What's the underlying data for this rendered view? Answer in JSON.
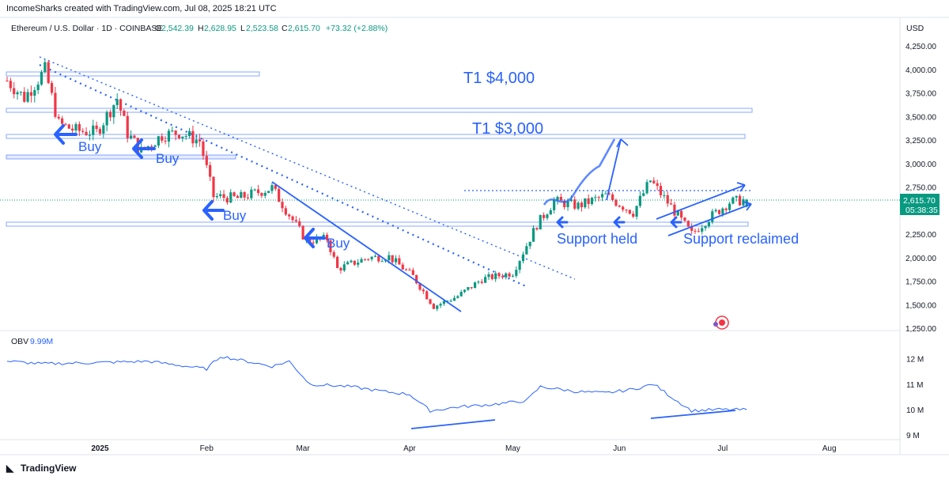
{
  "header": {
    "credit": "IncomeSharks created with TradingView.com, Jul 08, 2025 18:21 UTC"
  },
  "legend": {
    "symbol": "Ethereum / U.S. Dollar · 1D · COINBASE",
    "o_label": "O",
    "o": "2,542.39",
    "h_label": "H",
    "h": "2,628.95",
    "l_label": "L",
    "l": "2,523.58",
    "c_label": "C",
    "c": "2,615.70",
    "change": "+73.32 (+2.88%)"
  },
  "price_axis": {
    "currency": "USD",
    "ticks": [
      "4,250.00",
      "4,000.00",
      "3,750.00",
      "3,500.00",
      "3,250.00",
      "3,000.00",
      "2,750.00",
      "2,500.00",
      "2,250.00",
      "2,000.00",
      "1,750.00",
      "1,500.00",
      "1,250.00"
    ],
    "last_price": "2,615.70",
    "countdown": "05:38:35"
  },
  "obv": {
    "label": "OBV",
    "value": "9.99M",
    "ticks": [
      "12 M",
      "11 M",
      "10 M",
      "9 M"
    ]
  },
  "time_axis": {
    "ticks": [
      "2025",
      "Feb",
      "Mar",
      "Apr",
      "May",
      "Jun",
      "Jul",
      "Aug"
    ]
  },
  "annotations": {
    "target_high": "T1 $4,000",
    "target_mid": "T1 $3,000",
    "buy_labels": [
      "Buy",
      "Buy",
      "Buy",
      "Buy"
    ],
    "support_held": "Support held",
    "support_reclaimed": "Support reclaimed"
  },
  "footer": {
    "brand": "TradingView"
  },
  "colors": {
    "up": "#089981",
    "down": "#f23645",
    "annotation": "#2962ff",
    "obv_line": "#2962ff",
    "price_tag": "#089981"
  },
  "chart_data": [
    {
      "type": "candlestick",
      "title": "Ethereum / U.S. Dollar · 1D · COINBASE",
      "ylabel": "USD",
      "ylim": [
        1250,
        4250
      ],
      "x_ticks": [
        "2025",
        "Feb",
        "Mar",
        "Apr",
        "May",
        "Jun",
        "Jul",
        "Aug"
      ],
      "close_path": [
        [
          "2024-12-05",
          3880
        ],
        [
          "2024-12-10",
          3700
        ],
        [
          "2024-12-16",
          3990
        ],
        [
          "2024-12-20",
          3420
        ],
        [
          "2024-12-25",
          3350
        ],
        [
          "2024-12-31",
          3330
        ],
        [
          "2025-01-06",
          3690
        ],
        [
          "2025-01-09",
          3320
        ],
        [
          "2025-01-13",
          3130
        ],
        [
          "2025-01-19",
          3300
        ],
        [
          "2025-01-24",
          3330
        ],
        [
          "2025-01-30",
          3240
        ],
        [
          "2025-02-03",
          2650
        ],
        [
          "2025-02-10",
          2630
        ],
        [
          "2025-02-20",
          2740
        ],
        [
          "2025-02-24",
          2510
        ],
        [
          "2025-03-02",
          2180
        ],
        [
          "2025-03-08",
          2200
        ],
        [
          "2025-03-11",
          1880
        ],
        [
          "2025-03-20",
          2000
        ],
        [
          "2025-03-26",
          2010
        ],
        [
          "2025-04-02",
          1800
        ],
        [
          "2025-04-08",
          1480
        ],
        [
          "2025-04-15",
          1590
        ],
        [
          "2025-04-22",
          1770
        ],
        [
          "2025-05-01",
          1840
        ],
        [
          "2025-05-08",
          2350
        ],
        [
          "2025-05-13",
          2600
        ],
        [
          "2025-05-20",
          2550
        ],
        [
          "2025-05-28",
          2660
        ],
        [
          "2025-06-05",
          2480
        ],
        [
          "2025-06-10",
          2820
        ],
        [
          "2025-06-16",
          2540
        ],
        [
          "2025-06-22",
          2250
        ],
        [
          "2025-06-27",
          2420
        ],
        [
          "2025-07-03",
          2590
        ],
        [
          "2025-07-08",
          2615.7
        ]
      ],
      "last": {
        "open": 2542.39,
        "high": 2628.95,
        "low": 2523.58,
        "close": 2615.7,
        "change": 73.32,
        "change_pct": 2.88
      }
    },
    {
      "type": "line",
      "title": "OBV",
      "ylim": [
        9,
        12.3
      ],
      "units": "M",
      "series": [
        {
          "name": "OBV",
          "values": [
            [
              "2024-12-05",
              11.9
            ],
            [
              "2024-12-15",
              11.8
            ],
            [
              "2025-01-01",
              11.85
            ],
            [
              "2025-01-15",
              11.9
            ],
            [
              "2025-02-01",
              11.6
            ],
            [
              "2025-02-05",
              12.1
            ],
            [
              "2025-02-20",
              11.7
            ],
            [
              "2025-02-25",
              11.9
            ],
            [
              "2025-03-03",
              11.0
            ],
            [
              "2025-03-15",
              10.9
            ],
            [
              "2025-03-25",
              10.7
            ],
            [
              "2025-04-01",
              10.6
            ],
            [
              "2025-04-07",
              9.95
            ],
            [
              "2025-04-15",
              10.1
            ],
            [
              "2025-04-25",
              10.2
            ],
            [
              "2025-05-05",
              10.35
            ],
            [
              "2025-05-09",
              10.9
            ],
            [
              "2025-05-20",
              10.7
            ],
            [
              "2025-05-28",
              10.65
            ],
            [
              "2025-06-05",
              10.8
            ],
            [
              "2025-06-11",
              11.0
            ],
            [
              "2025-06-16",
              10.5
            ],
            [
              "2025-06-22",
              9.95
            ],
            [
              "2025-06-30",
              10.0
            ],
            [
              "2025-07-08",
              9.99
            ]
          ]
        }
      ]
    }
  ]
}
